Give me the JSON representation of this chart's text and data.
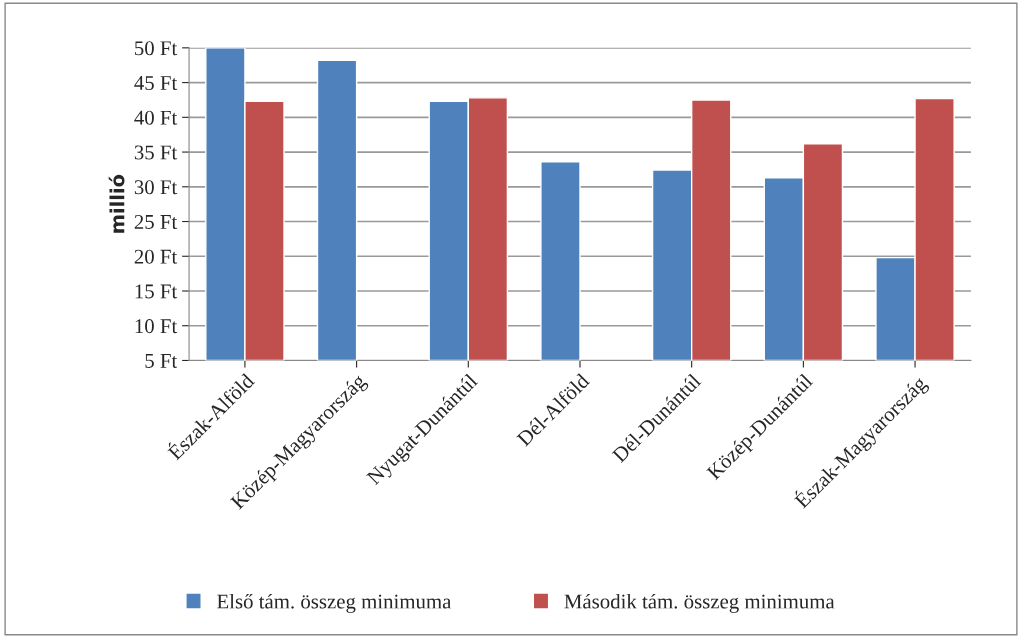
{
  "chart_data": {
    "type": "bar",
    "ylabel": "millió",
    "categories": [
      "Észak-Alföld",
      "Közép-Magyarország",
      "Nyugat-Dunántúl",
      "Dél-Alföld",
      "Dél-Dunántúl",
      "Közép-Dunántúl",
      "Észak-Magyarország"
    ],
    "series": [
      {
        "name": "Első tám. összeg minimuma",
        "color": "#4f81bd",
        "values": [
          50,
          48.2,
          42.3,
          33.6,
          32.4,
          31.3,
          19.8
        ]
      },
      {
        "name": "Második tám. összeg minimuma",
        "color": "#c0504d",
        "values": [
          42.3,
          null,
          42.8,
          null,
          42.5,
          36.2,
          42.7
        ]
      }
    ],
    "ylim": [
      5,
      50
    ],
    "yticks": [
      {
        "value": 5,
        "label": "5 Ft"
      },
      {
        "value": 10,
        "label": "10 Ft"
      },
      {
        "value": 15,
        "label": "15 Ft"
      },
      {
        "value": 20,
        "label": "20 Ft"
      },
      {
        "value": 25,
        "label": "25 Ft"
      },
      {
        "value": 30,
        "label": "30 Ft"
      },
      {
        "value": 35,
        "label": "35 Ft"
      },
      {
        "value": 40,
        "label": "40 Ft"
      },
      {
        "value": 45,
        "label": "45 Ft"
      },
      {
        "value": 50,
        "label": "50 Ft"
      }
    ],
    "grid": "y",
    "legend": "bottom"
  }
}
